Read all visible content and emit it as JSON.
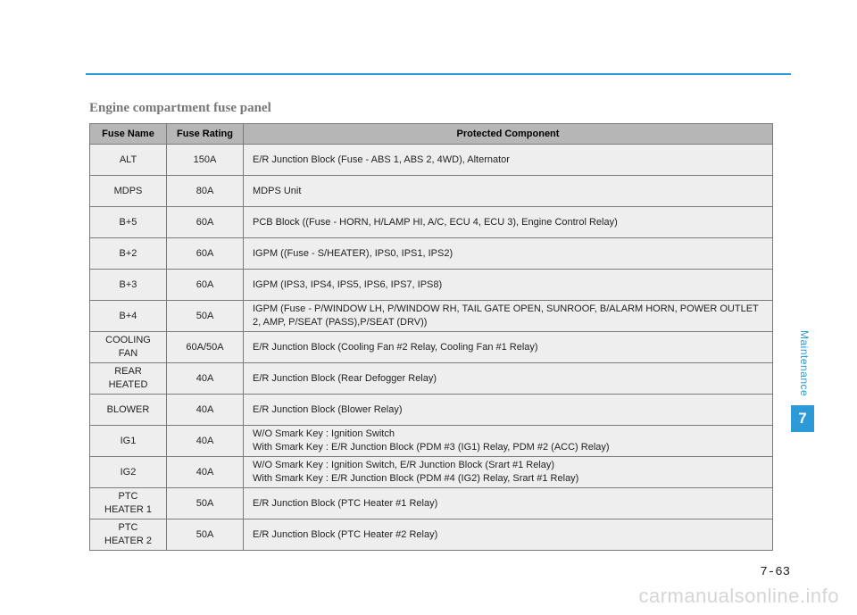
{
  "sideLabel": "Maintenance",
  "chapterNum": "7",
  "pageNum": "7-63",
  "watermark": "carmanualsonline.info",
  "heading": "Engine compartment fuse panel",
  "table": {
    "headers": [
      "Fuse Name",
      "Fuse Rating",
      "Protected Component"
    ],
    "rows": [
      {
        "name": "ALT",
        "rating": "150A",
        "desc": "E/R Junction Block (Fuse - ABS 1, ABS 2, 4WD), Alternator"
      },
      {
        "name": "MDPS",
        "rating": "80A",
        "desc": "MDPS Unit"
      },
      {
        "name": "B+5",
        "rating": "60A",
        "desc": "PCB Block ((Fuse - HORN, H/LAMP HI, A/C, ECU 4, ECU 3), Engine Control Relay)"
      },
      {
        "name": "B+2",
        "rating": "60A",
        "desc": "IGPM ((Fuse - S/HEATER), IPS0, IPS1, IPS2)"
      },
      {
        "name": "B+3",
        "rating": "60A",
        "desc": "IGPM (IPS3, IPS4, IPS5, IPS6, IPS7, IPS8)"
      },
      {
        "name": "B+4",
        "rating": "50A",
        "desc": "IGPM (Fuse - P/WINDOW LH, P/WINDOW RH, TAIL GATE OPEN, SUNROOF, B/ALARM HORN, POWER OUTLET 2, AMP, P/SEAT (PASS),P/SEAT (DRV))"
      },
      {
        "name": "COOLING FAN",
        "rating": "60A/50A",
        "desc": "E/R Junction Block (Cooling Fan #2 Relay, Cooling Fan #1 Relay)"
      },
      {
        "name": "REAR HEATED",
        "rating": "40A",
        "desc": "E/R Junction Block (Rear Defogger Relay)"
      },
      {
        "name": "BLOWER",
        "rating": "40A",
        "desc": "E/R Junction Block (Blower Relay)"
      },
      {
        "name": "IG1",
        "rating": "40A",
        "desc": "W/O Smark Key : Ignition Switch\nWith Smark Key : E/R Junction Block (PDM #3 (IG1) Relay, PDM #2 (ACC) Relay)"
      },
      {
        "name": "IG2",
        "rating": "40A",
        "desc": "W/O Smark Key : Ignition Switch, E/R Junction Block (Srart #1 Relay)\nWith Smark Key : E/R Junction Block (PDM #4 (IG2) Relay, Srart #1 Relay)"
      },
      {
        "name": "PTC HEATER 1",
        "rating": "50A",
        "desc": "E/R Junction Block (PTC Heater #1 Relay)"
      },
      {
        "name": "PTC HEATER 2",
        "rating": "50A",
        "desc": "E/R Junction Block (PTC Heater #2 Relay)"
      }
    ]
  },
  "style": {
    "ruleColor": "#2c9ad6",
    "headerBg": "#b6b6b6",
    "rowBg": "#eeeeee",
    "borderColor": "#7a7a7a",
    "pageBg": "#ffffff",
    "headingColor": "#777777",
    "watermarkColor": "#d5d5d5",
    "colWidths": {
      "c1": 86,
      "c2": 86
    },
    "fontSizes": {
      "th": 11,
      "td": 11,
      "heading": 15,
      "sideLabel": 12,
      "chapter": 17,
      "pageNum": 14,
      "watermark": 22
    }
  }
}
